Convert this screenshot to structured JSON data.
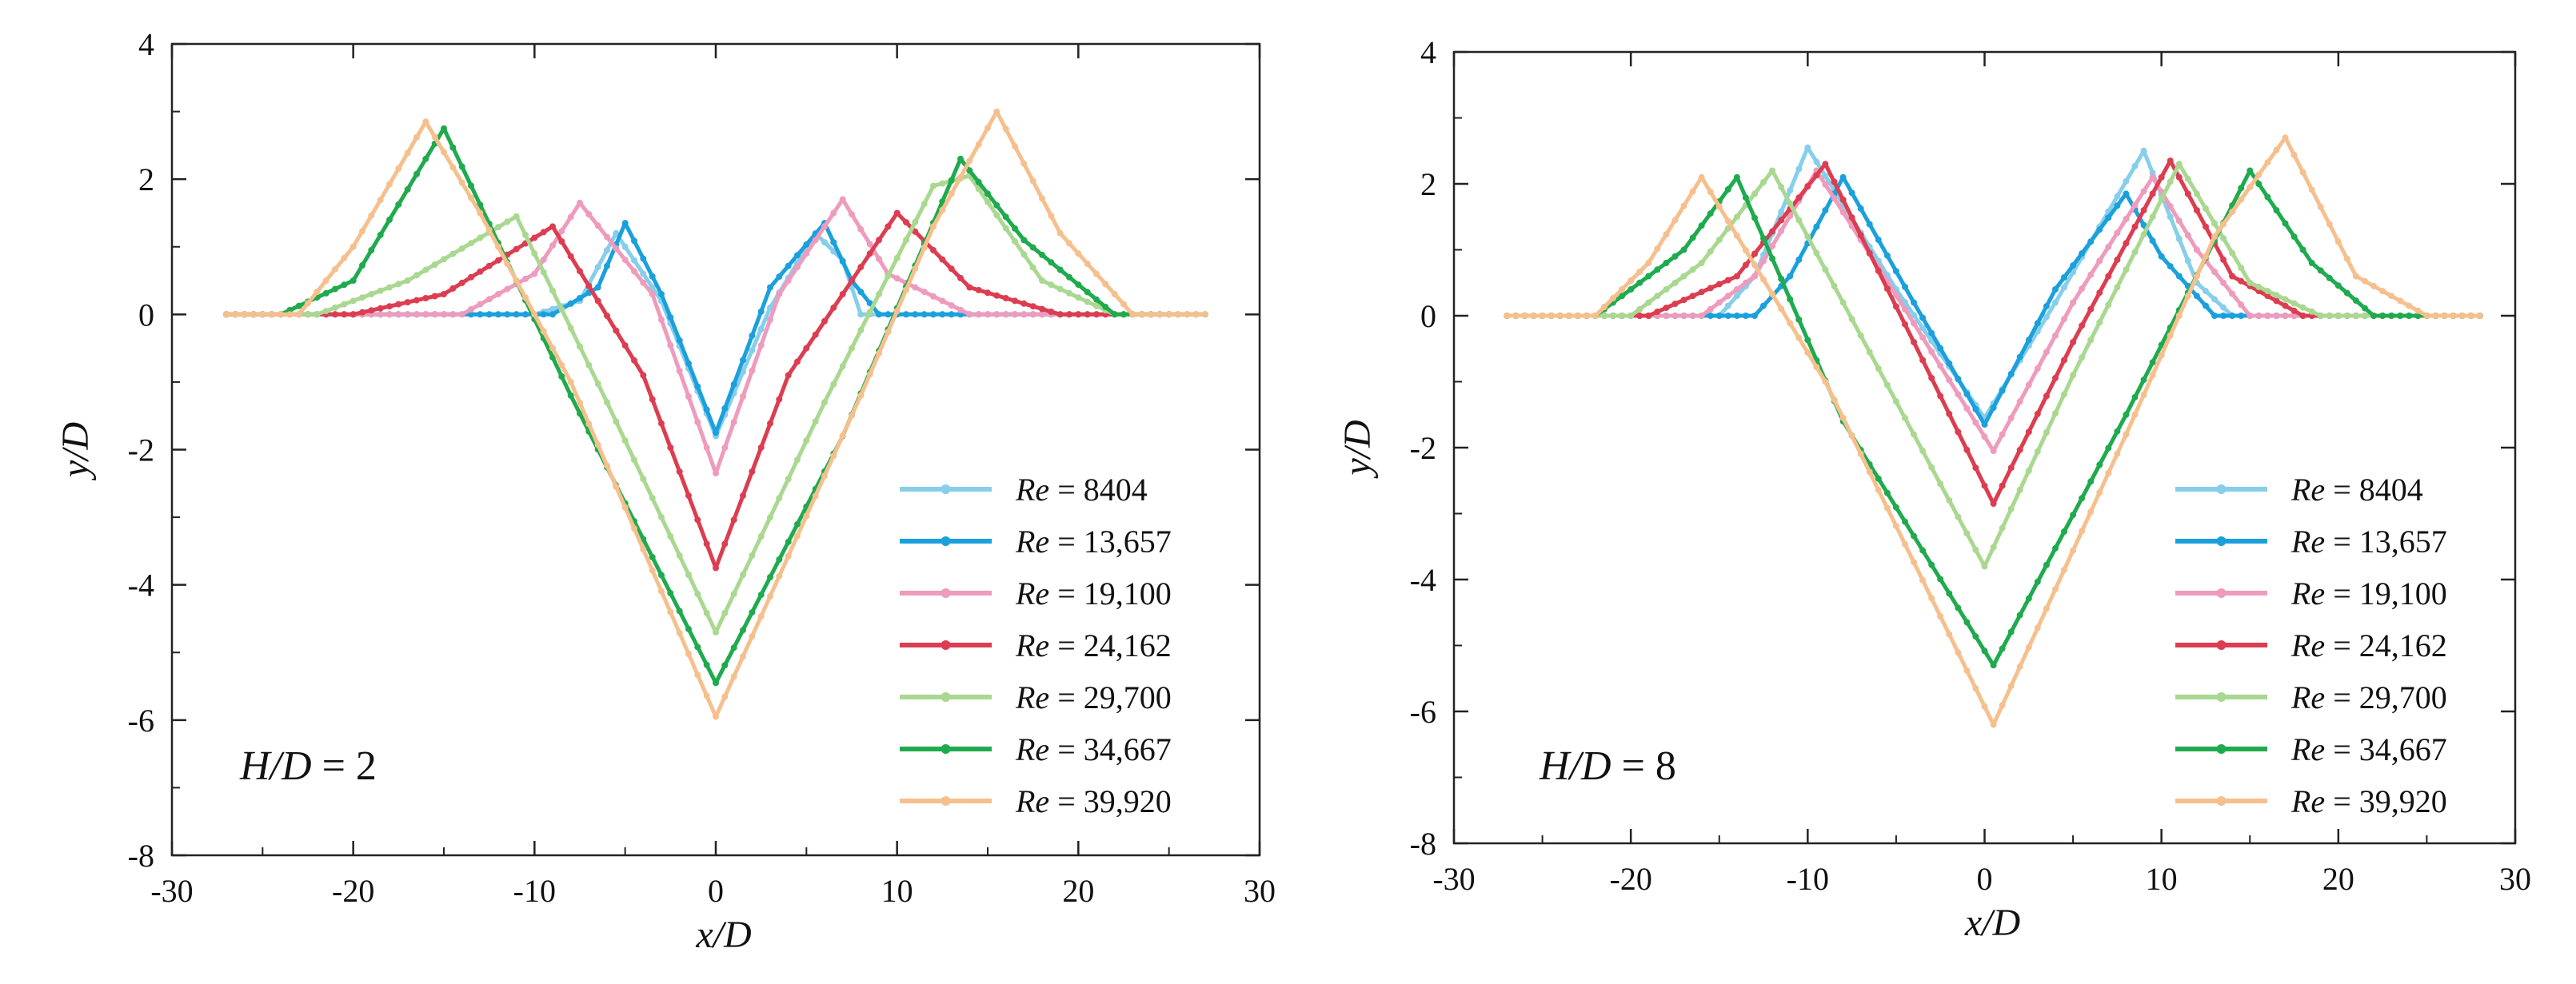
{
  "chart_data": [
    {
      "type": "line",
      "panel": "left",
      "annotation": {
        "label": "H/D",
        "value": "2"
      },
      "xlabel": "x/D",
      "ylabel": "y/D",
      "xlim": [
        -30,
        30
      ],
      "ylim": [
        -8,
        4
      ],
      "xticks": [
        -30,
        -20,
        -10,
        0,
        10,
        20,
        30
      ],
      "yticks": [
        4,
        2,
        0,
        -2,
        -4,
        -6,
        -8
      ],
      "grid": false,
      "legend_position": "bottom-right",
      "series": [
        {
          "name": "Re = 8404",
          "re": "8404",
          "color": "#87ceeb",
          "points": [
            [
              -27,
              0
            ],
            [
              -10,
              0
            ],
            [
              -7.5,
              0.2
            ],
            [
              -5.5,
              1.2
            ],
            [
              -3,
              0.2
            ],
            [
              0,
              -1.8
            ],
            [
              3,
              0.1
            ],
            [
              5.5,
              1.2
            ],
            [
              7,
              0.8
            ],
            [
              8,
              0
            ],
            [
              25,
              0
            ]
          ]
        },
        {
          "name": "Re = 13,657",
          "re": "13,657",
          "color": "#1ba0dc",
          "points": [
            [
              -27,
              0
            ],
            [
              -9,
              0
            ],
            [
              -6.5,
              0.4
            ],
            [
              -5,
              1.35
            ],
            [
              -3,
              0.3
            ],
            [
              0,
              -1.75
            ],
            [
              3,
              0.4
            ],
            [
              6,
              1.35
            ],
            [
              7.5,
              0.5
            ],
            [
              9,
              0
            ],
            [
              25,
              0
            ]
          ]
        },
        {
          "name": "Re = 19,100",
          "re": "19,100",
          "color": "#ee9bbd",
          "points": [
            [
              -27,
              0
            ],
            [
              -14,
              0
            ],
            [
              -10,
              0.6
            ],
            [
              -7.5,
              1.65
            ],
            [
              -3.5,
              0.3
            ],
            [
              0,
              -2.35
            ],
            [
              3.5,
              0.3
            ],
            [
              7,
              1.7
            ],
            [
              9.5,
              0.6
            ],
            [
              14,
              0
            ],
            [
              25,
              0
            ]
          ]
        },
        {
          "name": "Re = 24,162",
          "re": "24,162",
          "color": "#dc3d50",
          "points": [
            [
              -27,
              0
            ],
            [
              -20,
              0
            ],
            [
              -15,
              0.3
            ],
            [
              -9,
              1.3
            ],
            [
              -4,
              -0.9
            ],
            [
              0,
              -3.75
            ],
            [
              4,
              -0.9
            ],
            [
              10,
              1.5
            ],
            [
              14,
              0.4
            ],
            [
              19,
              0
            ],
            [
              25,
              0
            ]
          ]
        },
        {
          "name": "Re = 29,700",
          "re": "29,700",
          "color": "#a9d891",
          "points": [
            [
              -27,
              0
            ],
            [
              -22,
              0
            ],
            [
              -17,
              0.5
            ],
            [
              -11,
              1.45
            ],
            [
              -6,
              -1.3
            ],
            [
              0,
              -4.7
            ],
            [
              6,
              -1.3
            ],
            [
              12,
              1.9
            ],
            [
              14,
              2.05
            ],
            [
              18,
              0.5
            ],
            [
              22,
              0
            ],
            [
              27,
              0
            ]
          ]
        },
        {
          "name": "Re = 34,667",
          "re": "34,667",
          "color": "#1faa4e",
          "points": [
            [
              -27,
              0
            ],
            [
              -24,
              0
            ],
            [
              -20,
              0.5
            ],
            [
              -15,
              2.75
            ],
            [
              -8,
              -1.2
            ],
            [
              0,
              -5.45
            ],
            [
              7,
              -1.8
            ],
            [
              13.5,
              2.3
            ],
            [
              17,
              1.1
            ],
            [
              22,
              0
            ],
            [
              27,
              0
            ]
          ]
        },
        {
          "name": "Re = 39,920",
          "re": "39,920",
          "color": "#f5c08e",
          "points": [
            [
              -27,
              0
            ],
            [
              -23,
              0
            ],
            [
              -20,
              1.0
            ],
            [
              -16,
              2.85
            ],
            [
              -13,
              1.5
            ],
            [
              -8,
              -1.0
            ],
            [
              0,
              -5.95
            ],
            [
              8,
              -1.2
            ],
            [
              12,
              1.3
            ],
            [
              15.5,
              3.0
            ],
            [
              19,
              1.2
            ],
            [
              23,
              0
            ],
            [
              27,
              0
            ]
          ]
        }
      ]
    },
    {
      "type": "line",
      "panel": "right",
      "annotation": {
        "label": "H/D",
        "value": "8"
      },
      "xlabel": "x/D",
      "ylabel": "y/D",
      "xlim": [
        -30,
        30
      ],
      "ylim": [
        -8,
        4
      ],
      "xticks": [
        -30,
        -20,
        -10,
        0,
        10,
        20,
        30
      ],
      "yticks": [
        4,
        2,
        0,
        -2,
        -4,
        -6,
        -8
      ],
      "grid": false,
      "legend_position": "bottom-right",
      "series": [
        {
          "name": "Re = 8404",
          "re": "8404",
          "color": "#87ceeb",
          "points": [
            [
              -27,
              0
            ],
            [
              -15,
              0
            ],
            [
              -13,
              0.6
            ],
            [
              -10,
              2.55
            ],
            [
              -5,
              0.4
            ],
            [
              0,
              -1.55
            ],
            [
              4,
              0.2
            ],
            [
              9,
              2.5
            ],
            [
              12,
              0.5
            ],
            [
              14,
              0
            ],
            [
              28,
              0
            ]
          ]
        },
        {
          "name": "Re = 13,657",
          "re": "13,657",
          "color": "#1ba0dc",
          "points": [
            [
              -27,
              0
            ],
            [
              -13,
              0
            ],
            [
              -11,
              0.6
            ],
            [
              -8,
              2.1
            ],
            [
              -4,
              0.2
            ],
            [
              0,
              -1.65
            ],
            [
              4,
              0.4
            ],
            [
              8,
              1.85
            ],
            [
              10,
              0.9
            ],
            [
              13,
              0
            ],
            [
              28,
              0
            ]
          ]
        },
        {
          "name": "Re = 19,100",
          "re": "19,100",
          "color": "#ee9bbd",
          "points": [
            [
              -27,
              0
            ],
            [
              -16,
              0
            ],
            [
              -13,
              0.6
            ],
            [
              -9.5,
              2.2
            ],
            [
              -4.5,
              0.1
            ],
            [
              0.5,
              -2.05
            ],
            [
              5,
              0.2
            ],
            [
              9.5,
              2.1
            ],
            [
              12,
              1.0
            ],
            [
              15,
              0
            ],
            [
              28,
              0
            ]
          ]
        },
        {
          "name": "Re = 24,162",
          "re": "24,162",
          "color": "#dc3d50",
          "points": [
            [
              -27,
              0
            ],
            [
              -19,
              0
            ],
            [
              -14,
              0.6
            ],
            [
              -9,
              2.3
            ],
            [
              -4,
              -0.4
            ],
            [
              0.5,
              -2.85
            ],
            [
              5,
              -0.4
            ],
            [
              10.5,
              2.35
            ],
            [
              14,
              0.6
            ],
            [
              18,
              0
            ],
            [
              28,
              0
            ]
          ]
        },
        {
          "name": "Re = 29,700",
          "re": "29,700",
          "color": "#a9d891",
          "points": [
            [
              -27,
              0
            ],
            [
              -20,
              0
            ],
            [
              -16,
              0.8
            ],
            [
              -12,
              2.2
            ],
            [
              -5,
              -1.3
            ],
            [
              0,
              -3.8
            ],
            [
              5,
              -0.9
            ],
            [
              11,
              2.3
            ],
            [
              15,
              0.5
            ],
            [
              19,
              0
            ],
            [
              28,
              0
            ]
          ]
        },
        {
          "name": "Re = 34,667",
          "re": "34,667",
          "color": "#1faa4e",
          "points": [
            [
              -27,
              0
            ],
            [
              -22,
              0
            ],
            [
              -17,
              1.0
            ],
            [
              -14,
              2.1
            ],
            [
              -8,
              -1.6
            ],
            [
              0.5,
              -5.3
            ],
            [
              8,
              -1.5
            ],
            [
              15,
              2.2
            ],
            [
              18.5,
              0.8
            ],
            [
              22,
              0
            ],
            [
              28,
              0
            ]
          ]
        },
        {
          "name": "Re = 39,920",
          "re": "39,920",
          "color": "#f5c08e",
          "points": [
            [
              -27,
              0
            ],
            [
              -22,
              0
            ],
            [
              -19,
              0.8
            ],
            [
              -16,
              2.1
            ],
            [
              -9,
              -1.0
            ],
            [
              0.5,
              -6.2
            ],
            [
              8,
              -1.8
            ],
            [
              13,
              1.2
            ],
            [
              17,
              2.7
            ],
            [
              21,
              0.6
            ],
            [
              25,
              0
            ],
            [
              28,
              0
            ]
          ]
        }
      ]
    }
  ]
}
